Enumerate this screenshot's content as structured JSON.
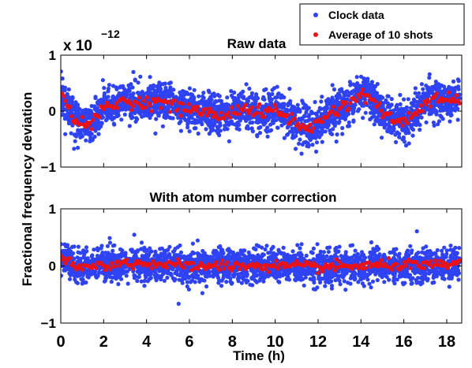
{
  "chart_data": {
    "type": "scatter",
    "shared_xlabel": "Time (h)",
    "shared_ylabel": "Fractional frequency deviation",
    "y_scale_label": "x 10",
    "y_scale_exponent": "−12",
    "legend": {
      "placement": "top-right",
      "entries": [
        {
          "label": "Clock data",
          "color": "#2f43f5"
        },
        {
          "label": "Average of 10 shots",
          "color": "#ee1111"
        }
      ]
    },
    "x_ticks": [
      "0",
      "2",
      "4",
      "6",
      "8",
      "10",
      "12",
      "14",
      "16",
      "18"
    ],
    "xlim": [
      0,
      18.7
    ],
    "panels": [
      {
        "title": "Raw data",
        "ylim": [
          -1,
          1
        ],
        "y_ticks": [
          "−1",
          "0",
          "1"
        ],
        "series": [
          {
            "name": "Clock data",
            "color": "#2f43f5",
            "spread": 0.17,
            "n": 2600
          },
          {
            "name": "Average of 10 shots",
            "color": "#ee1111",
            "trend": {
              "x": [
                0,
                0.3,
                0.6,
                1.0,
                1.5,
                2.0,
                2.5,
                3.0,
                3.5,
                4.0,
                4.5,
                5.0,
                5.5,
                6.0,
                6.5,
                7.0,
                7.5,
                8.0,
                8.5,
                9.0,
                9.5,
                10.0,
                10.5,
                11.0,
                11.5,
                12.0,
                12.5,
                13.0,
                13.5,
                14.0,
                14.5,
                15.0,
                15.5,
                16.0,
                16.5,
                17.0,
                17.5,
                18.0,
                18.5
              ],
              "y": [
                0.25,
                0.15,
                -0.1,
                -0.25,
                -0.2,
                0.05,
                0.1,
                0.2,
                0.15,
                0.15,
                0.18,
                0.12,
                0.05,
                0.05,
                0.0,
                -0.05,
                -0.1,
                0.0,
                0.05,
                0.0,
                -0.05,
                0.05,
                -0.1,
                -0.2,
                -0.35,
                -0.2,
                -0.05,
                0.05,
                0.15,
                0.3,
                0.25,
                -0.05,
                -0.15,
                -0.2,
                -0.05,
                0.15,
                0.2,
                0.2,
                0.2
              ]
            }
          }
        ]
      },
      {
        "title": "With atom number correction",
        "ylim": [
          -1,
          1
        ],
        "y_ticks": [
          "−1",
          "0",
          "1"
        ],
        "series": [
          {
            "name": "Clock data",
            "color": "#2f43f5",
            "spread": 0.14,
            "n": 2600
          },
          {
            "name": "Average of 10 shots",
            "color": "#ee1111",
            "trend": {
              "x": [
                0,
                0.3,
                0.6,
                1.0,
                2.0,
                3.0,
                4.0,
                5.0,
                6.0,
                8.0,
                10.0,
                12.0,
                14.0,
                16.0,
                17.0,
                18.0,
                18.5
              ],
              "y": [
                0.15,
                0.1,
                -0.05,
                -0.03,
                0.02,
                0.04,
                0.05,
                0.02,
                0.0,
                0.0,
                0.0,
                -0.02,
                0.0,
                0.02,
                0.0,
                0.02,
                0.05
              ]
            }
          }
        ]
      }
    ]
  }
}
